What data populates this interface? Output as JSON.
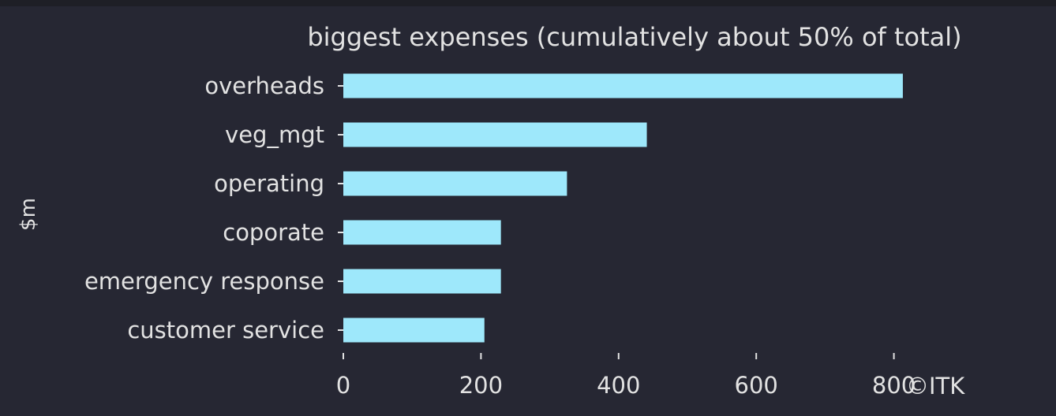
{
  "chart_data": {
    "type": "bar",
    "orientation": "horizontal",
    "title": "biggest expenses (cumulatively about 50% of total)",
    "xlabel": "",
    "ylabel": "$m",
    "categories": [
      "overheads",
      "veg_mgt",
      "operating",
      "coporate",
      "emergency response",
      "customer service"
    ],
    "values": [
      813,
      441,
      325,
      229,
      229,
      205
    ],
    "xlim": [
      0,
      1000
    ],
    "xticks": [
      0,
      200,
      400,
      600,
      800
    ],
    "grid": false,
    "legend": "none",
    "bar_color": "#9ee8fb",
    "text_color": "#e2e2e2",
    "background_color": "#262733"
  },
  "credit": "©ITK"
}
